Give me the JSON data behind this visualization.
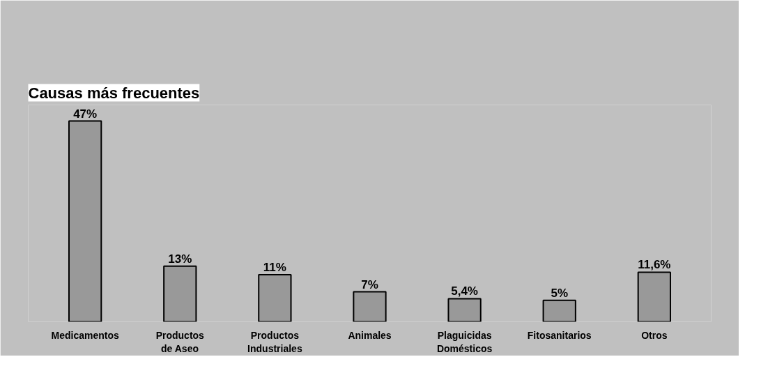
{
  "chart_data": {
    "type": "bar",
    "title": "Causas más frecuentes",
    "categories": [
      "Medicamentos",
      "Productos\nde Aseo",
      "Productos\nIndustriales",
      "Animales",
      "Plaguicidas\nDomésticos",
      "Fitosanitarios",
      "Otros"
    ],
    "values": [
      47,
      13,
      11,
      7,
      5.4,
      5,
      11.6
    ],
    "value_labels": [
      "47%",
      "13%",
      "11%",
      "7%",
      "5,4%",
      "5%",
      "11,6%"
    ],
    "color": "#999999",
    "grid": false
  }
}
